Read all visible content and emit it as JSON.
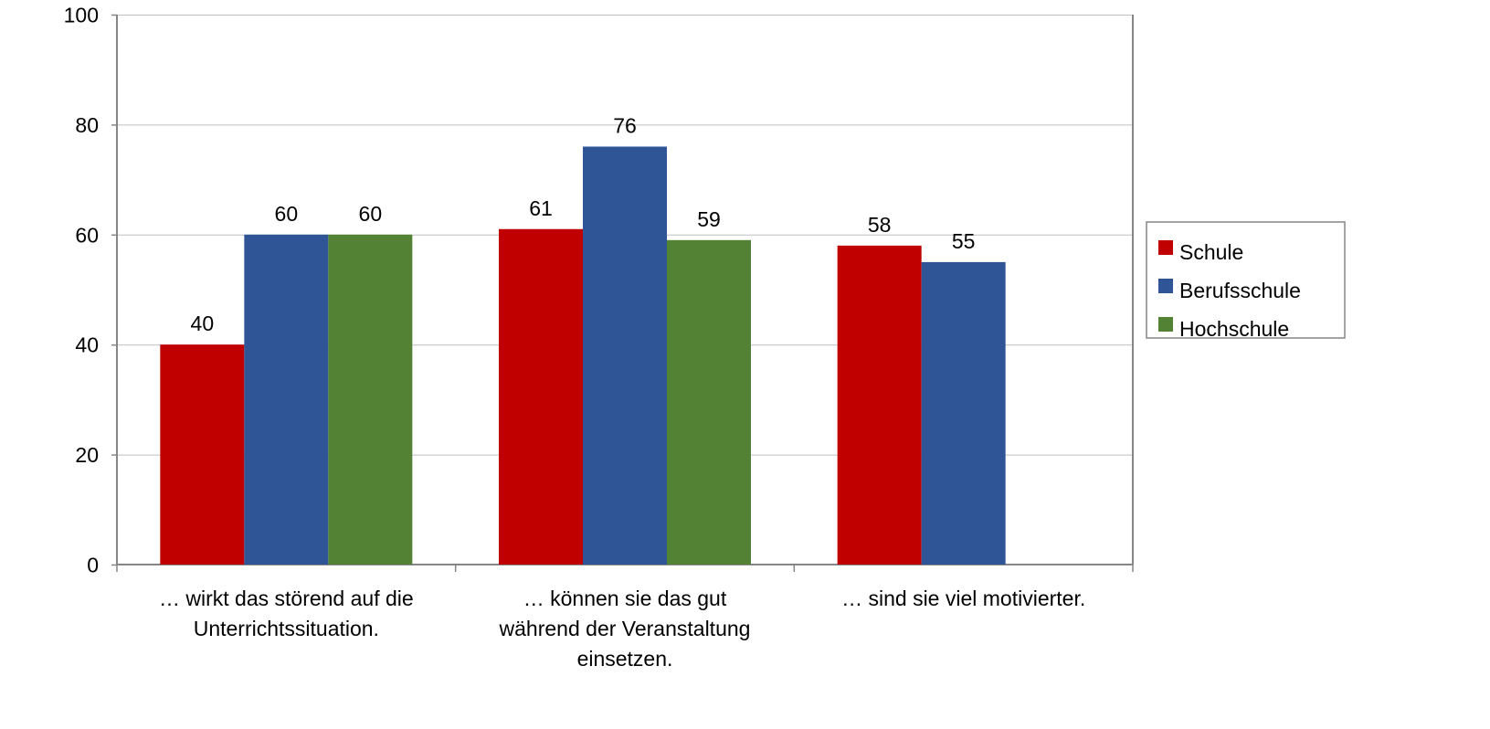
{
  "chart_data": {
    "type": "bar",
    "title": "",
    "xlabel": "",
    "ylabel": "",
    "ylim": [
      0,
      100
    ],
    "yticks": [
      0,
      20,
      40,
      60,
      80,
      100
    ],
    "grid": true,
    "legend_position": "right",
    "categories": [
      [
        "… wirkt das störend auf die",
        "Unterrichtssituation."
      ],
      [
        "… können sie das gut",
        "während der Veranstaltung",
        "einsetzen."
      ],
      [
        "… sind sie viel motivierter."
      ]
    ],
    "series": [
      {
        "name": "Schule",
        "color": "#C00000",
        "values": [
          40,
          61,
          58
        ]
      },
      {
        "name": "Berufsschule",
        "color": "#2F5597",
        "values": [
          60,
          76,
          55
        ]
      },
      {
        "name": "Hochschule",
        "color": "#548235",
        "values": [
          60,
          59,
          null
        ]
      }
    ]
  }
}
